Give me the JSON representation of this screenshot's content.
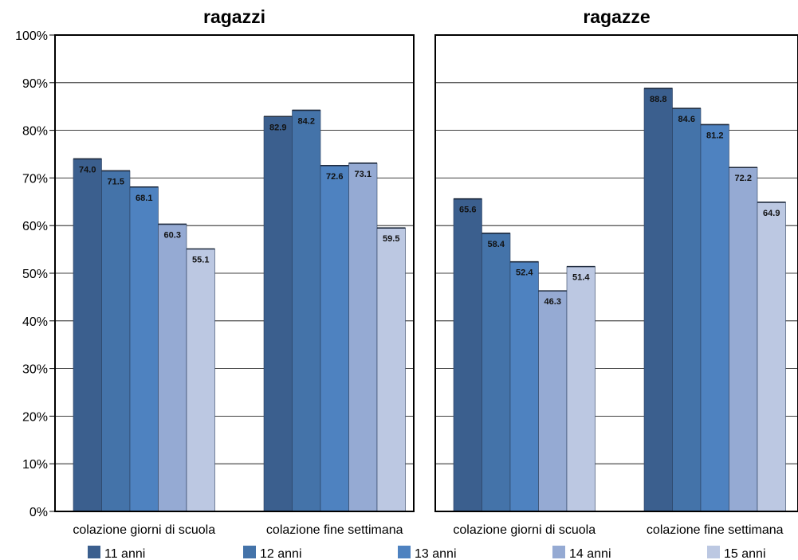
{
  "chart_data": [
    {
      "type": "bar",
      "title": "ragazzi",
      "categories": [
        "colazione giorni di scuola",
        "colazione fine settimana"
      ],
      "series": [
        {
          "name": "11 anni",
          "values": [
            74.0,
            82.9
          ],
          "labels": [
            "74.0",
            "82.9"
          ]
        },
        {
          "name": "12 anni",
          "values": [
            71.5,
            84.2
          ],
          "labels": [
            "71.5",
            "84.2"
          ]
        },
        {
          "name": "13 anni",
          "values": [
            68.1,
            72.6
          ],
          "labels": [
            "68.1",
            "72.6"
          ]
        },
        {
          "name": "14 anni",
          "values": [
            60.3,
            73.1
          ],
          "labels": [
            "60.3",
            "73.1"
          ]
        },
        {
          "name": "15 anni",
          "values": [
            55.1,
            59.5
          ],
          "labels": [
            "55.1",
            "59.5"
          ]
        }
      ],
      "ylim": [
        0,
        100
      ],
      "yticks": [
        "0%",
        "10%",
        "20%",
        "30%",
        "40%",
        "50%",
        "60%",
        "70%",
        "80%",
        "90%",
        "100%"
      ],
      "grid": true
    },
    {
      "type": "bar",
      "title": "ragazze",
      "categories": [
        "colazione giorni di scuola",
        "colazione fine settimana"
      ],
      "series": [
        {
          "name": "11 anni",
          "values": [
            65.6,
            88.8
          ],
          "labels": [
            "65.6",
            "88.8"
          ]
        },
        {
          "name": "12 anni",
          "values": [
            58.4,
            84.6
          ],
          "labels": [
            "58.4",
            "84.6"
          ]
        },
        {
          "name": "13 anni",
          "values": [
            52.4,
            81.2
          ],
          "labels": [
            "52.4",
            "81.2"
          ]
        },
        {
          "name": "14 anni",
          "values": [
            46.3,
            72.2
          ],
          "labels": [
            "46.3",
            "72.2"
          ]
        },
        {
          "name": "15 anni",
          "values": [
            51.4,
            64.9
          ],
          "labels": [
            "51.4",
            "64.9"
          ]
        }
      ],
      "ylim": [
        0,
        100
      ],
      "grid": true
    }
  ],
  "legend": {
    "position": "bottom",
    "items": [
      "11 anni",
      "12 anni",
      "13 anni",
      "14 anni",
      "15 anni"
    ]
  },
  "colors": [
    "#3b5f8e",
    "#4473a9",
    "#4e82c0",
    "#95aad3",
    "#bcc8e2"
  ]
}
